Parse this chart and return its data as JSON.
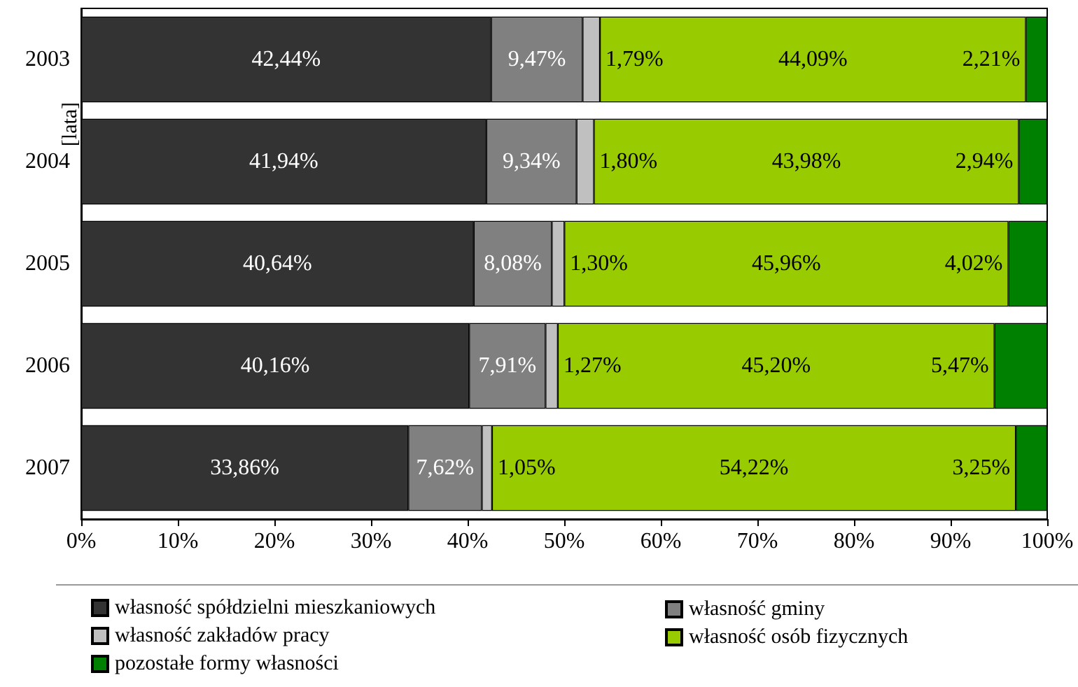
{
  "chart_data": {
    "type": "bar",
    "orientation": "horizontal",
    "stacked": true,
    "ylabel": "[lata]",
    "categories": [
      "2003",
      "2004",
      "2005",
      "2006",
      "2007"
    ],
    "series": [
      {
        "name": "własność spółdzielni mieszkaniowych",
        "color": "#333333",
        "values": [
          42.44,
          41.94,
          40.64,
          40.16,
          33.86
        ],
        "value_labels": [
          "42,44%",
          "41,94%",
          "40,64%",
          "40,16%",
          "33,86%"
        ]
      },
      {
        "name": "własność gminy",
        "color": "#808080",
        "values": [
          9.47,
          9.34,
          8.08,
          7.91,
          7.62
        ],
        "value_labels": [
          "9,47%",
          "9,34%",
          "8,08%",
          "7,91%",
          "7,62%"
        ]
      },
      {
        "name": "własność zakładów pracy",
        "color": "#c0c0c0",
        "values": [
          1.79,
          1.8,
          1.3,
          1.27,
          1.05
        ],
        "value_labels": [
          "1,79%",
          "1,80%",
          "1,30%",
          "1,27%",
          "1,05%"
        ]
      },
      {
        "name": "własność osób fizycznych",
        "color": "#99cc00",
        "values": [
          44.09,
          43.98,
          45.96,
          45.2,
          54.22
        ],
        "value_labels": [
          "44,09%",
          "43,98%",
          "45,96%",
          "45,20%",
          "54,22%"
        ]
      },
      {
        "name": "pozostałe formy własności",
        "color": "#008000",
        "values": [
          2.21,
          2.94,
          4.02,
          5.47,
          3.25
        ],
        "value_labels": [
          "2,21%",
          "2,94%",
          "4,02%",
          "5,47%",
          "3,25%"
        ]
      }
    ],
    "xlim": [
      0,
      100
    ],
    "xticks": [
      {
        "value": 0,
        "label": "0%"
      },
      {
        "value": 10,
        "label": "10%"
      },
      {
        "value": 20,
        "label": "20%"
      },
      {
        "value": 30,
        "label": "30%"
      },
      {
        "value": 40,
        "label": "40%"
      },
      {
        "value": 50,
        "label": "50%"
      },
      {
        "value": 60,
        "label": "60%"
      },
      {
        "value": 70,
        "label": "70%"
      },
      {
        "value": 80,
        "label": "80%"
      },
      {
        "value": 90,
        "label": "90%"
      },
      {
        "value": 100,
        "label": "100%"
      }
    ],
    "legend": "bottom",
    "grid": false
  }
}
